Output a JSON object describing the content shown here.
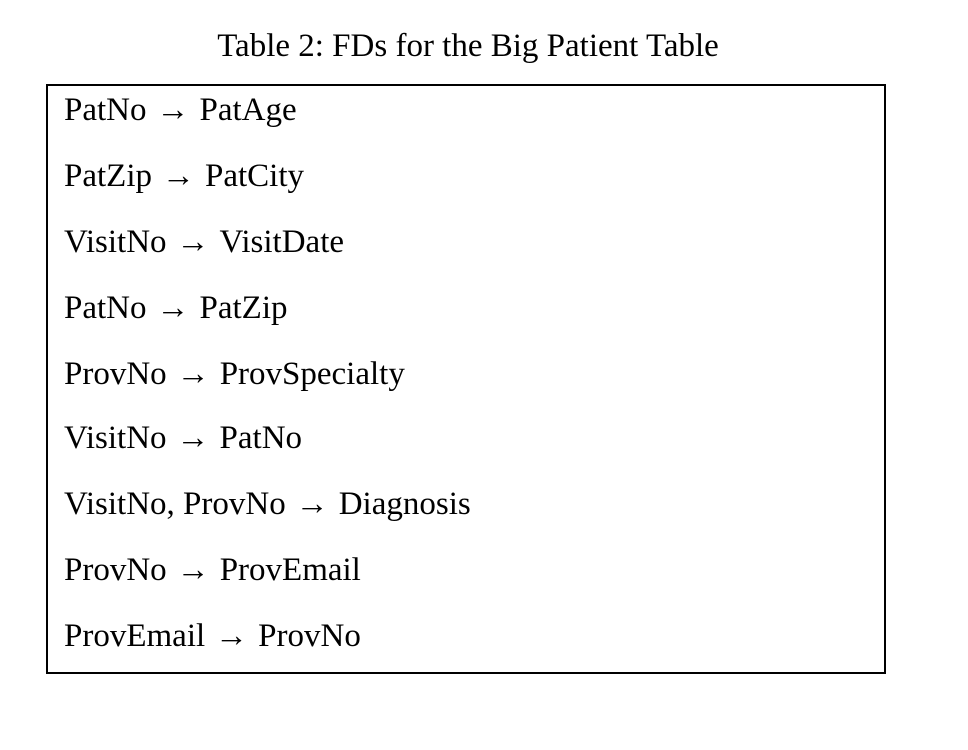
{
  "caption": "Table 2: FDs for the Big Patient Table",
  "arrow_glyph": "→",
  "fds": [
    {
      "lhs": "PatNo",
      "rhs": "PatAge"
    },
    {
      "lhs": "PatZip",
      "rhs": "PatCity"
    },
    {
      "lhs": "VisitNo",
      "rhs": "VisitDate"
    },
    {
      "lhs": "PatNo",
      "rhs": "PatZip"
    },
    {
      "lhs": "ProvNo",
      "rhs": "ProvSpecialty"
    },
    {
      "lhs": "VisitNo",
      "rhs": "PatNo"
    },
    {
      "lhs": "VisitNo, ProvNo",
      "rhs": "Diagnosis"
    },
    {
      "lhs": "ProvNo",
      "rhs": "ProvEmail"
    },
    {
      "lhs": "ProvEmail",
      "rhs": "ProvNo"
    }
  ]
}
